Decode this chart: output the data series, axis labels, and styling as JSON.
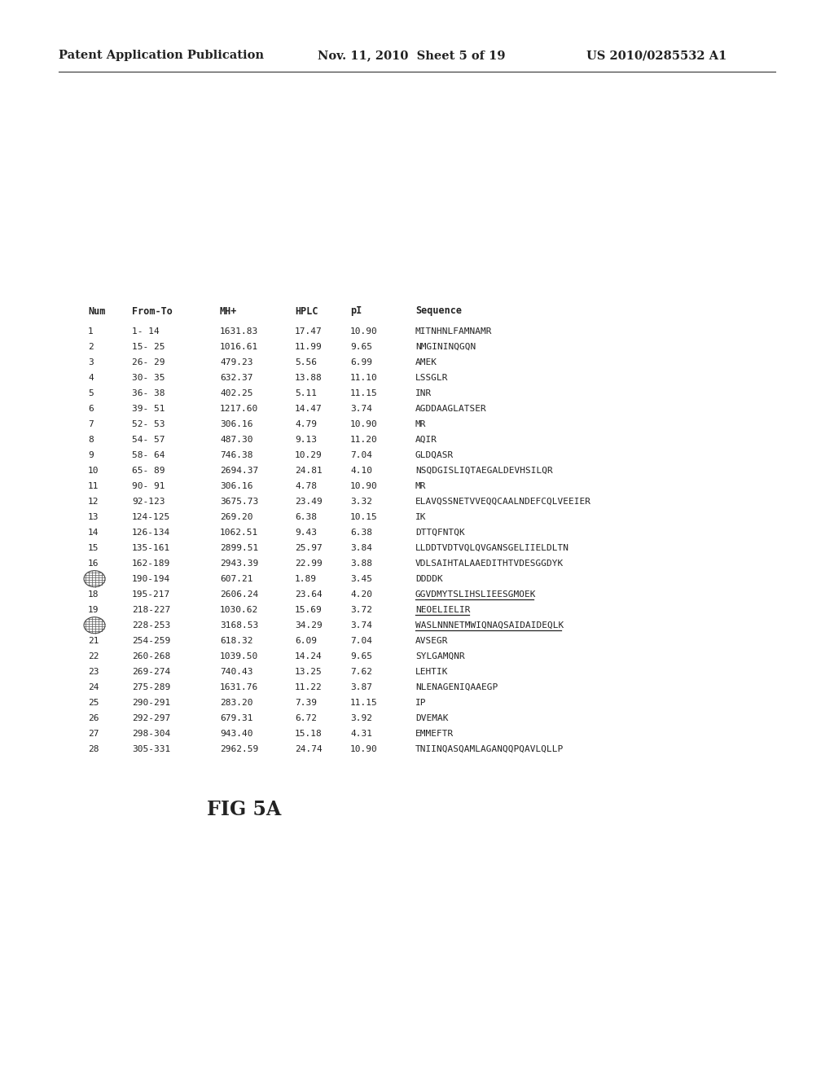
{
  "header_left": "Patent Application Publication",
  "header_mid": "Nov. 11, 2010  Sheet 5 of 19",
  "header_right": "US 2010/0285532 A1",
  "figure_label": "FIG 5A",
  "col_headers": [
    "Num",
    "From-To",
    "MH+",
    "HPLC",
    "pI",
    "Sequence"
  ],
  "rows": [
    [
      "1",
      "1- 14",
      "1631.83",
      "17.47",
      "10.90",
      "MITNHNLFAMNAMR",
      false,
      false
    ],
    [
      "2",
      "15- 25",
      "1016.61",
      "11.99",
      "9.65",
      "NMGININQGQN",
      false,
      false
    ],
    [
      "3",
      "26- 29",
      "479.23",
      "5.56",
      "6.99",
      "AMEK",
      false,
      false
    ],
    [
      "4",
      "30- 35",
      "632.37",
      "13.88",
      "11.10",
      "LSSGLR",
      false,
      false
    ],
    [
      "5",
      "36- 38",
      "402.25",
      "5.11",
      "11.15",
      "INR",
      false,
      false
    ],
    [
      "6",
      "39- 51",
      "1217.60",
      "14.47",
      "3.74",
      "AGDDAAGLATSER",
      false,
      false
    ],
    [
      "7",
      "52- 53",
      "306.16",
      "4.79",
      "10.90",
      "MR",
      false,
      false
    ],
    [
      "8",
      "54- 57",
      "487.30",
      "9.13",
      "11.20",
      "AQIR",
      false,
      false
    ],
    [
      "9",
      "58- 64",
      "746.38",
      "10.29",
      "7.04",
      "GLDQASR",
      false,
      false
    ],
    [
      "10",
      "65- 89",
      "2694.37",
      "24.81",
      "4.10",
      "NSQDGISLIQTAEGALDEVHSILQR",
      false,
      false
    ],
    [
      "11",
      "90- 91",
      "306.16",
      "4.78",
      "10.90",
      "MR",
      false,
      false
    ],
    [
      "12",
      "92-123",
      "3675.73",
      "23.49",
      "3.32",
      "ELAVQSSNETVVEQQCAALNDEFCQLVEEIER",
      false,
      false
    ],
    [
      "13",
      "124-125",
      "269.20",
      "6.38",
      "10.15",
      "IK",
      false,
      false
    ],
    [
      "14",
      "126-134",
      "1062.51",
      "9.43",
      "6.38",
      "DTTQFNTQK",
      false,
      false
    ],
    [
      "15",
      "135-161",
      "2899.51",
      "25.97",
      "3.84",
      "LLDDTVDTVQLQVGANSGELIIELDLTN",
      false,
      false
    ],
    [
      "16",
      "162-189",
      "2943.39",
      "22.99",
      "3.88",
      "VDLSAIHTALAAEDITHTVDESGGDYK",
      false,
      false
    ],
    [
      "",
      "190-194",
      "607.21",
      "1.89",
      "3.45",
      "DDDDK",
      false,
      true
    ],
    [
      "18",
      "195-217",
      "2606.24",
      "23.64",
      "4.20",
      "GGVDMYTSLIHSLIEESGMOEK",
      true,
      false
    ],
    [
      "19",
      "218-227",
      "1030.62",
      "15.69",
      "3.72",
      "NEOELIELIR",
      true,
      false
    ],
    [
      "",
      "228-253",
      "3168.53",
      "34.29",
      "3.74",
      "WASLNNNETMWIQNAQSAIDAIDEQLK",
      true,
      true
    ],
    [
      "21",
      "254-259",
      "618.32",
      "6.09",
      "7.04",
      "AVSEGR",
      false,
      false
    ],
    [
      "22",
      "260-268",
      "1039.50",
      "14.24",
      "9.65",
      "SYLGAMQNR",
      false,
      false
    ],
    [
      "23",
      "269-274",
      "740.43",
      "13.25",
      "7.62",
      "LEHTIK",
      false,
      false
    ],
    [
      "24",
      "275-289",
      "1631.76",
      "11.22",
      "3.87",
      "NLENAGENIQAAEGP",
      false,
      false
    ],
    [
      "25",
      "290-291",
      "283.20",
      "7.39",
      "11.15",
      "IP",
      false,
      false
    ],
    [
      "26",
      "292-297",
      "679.31",
      "6.72",
      "3.92",
      "DVEMAK",
      false,
      false
    ],
    [
      "27",
      "298-304",
      "943.40",
      "15.18",
      "4.31",
      "EMMEFTR",
      false,
      false
    ],
    [
      "28",
      "305-331",
      "2962.59",
      "24.74",
      "10.90",
      "TNIINQASQAMLAGANQQPQAVLQLLP",
      false,
      false
    ]
  ],
  "circle_row_indices": [
    16,
    19
  ],
  "bg_color": "#ffffff",
  "text_color": "#222222",
  "font_size": 8.0,
  "header_font_size": 10.5
}
